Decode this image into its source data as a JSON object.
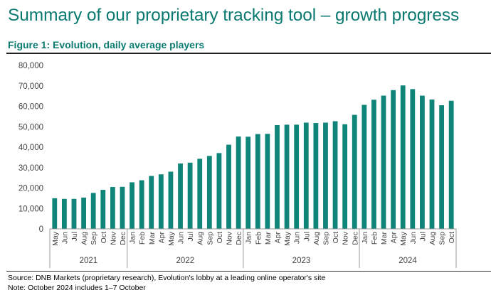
{
  "header": {
    "title": "Summary of our proprietary tracking tool – growth progress",
    "figure_title": "Figure 1: Evolution, daily average players"
  },
  "footer": {
    "source": "Source: DNB Markets (proprietary research), Evolution's lobby at a leading online operator's site",
    "note": "Note: October 2024 includes 1–7 October"
  },
  "colors": {
    "bar": "#0f857a",
    "title": "#0b7a70"
  },
  "chart_data": {
    "type": "bar",
    "ylim": [
      0,
      80000
    ],
    "yticks": [
      0,
      10000,
      20000,
      30000,
      40000,
      50000,
      60000,
      70000,
      80000
    ],
    "ytick_labels": [
      "0",
      "10,000",
      "20,000",
      "30,000",
      "40,000",
      "50,000",
      "60,000",
      "70,000",
      "80,000"
    ],
    "grid": false,
    "legend": "none",
    "categories": [
      "May",
      "Jun",
      "Jul",
      "Aug",
      "Sep",
      "Oct",
      "Nov",
      "Dec",
      "Jan",
      "Feb",
      "Mar",
      "Apr",
      "May",
      "Jun",
      "Jul",
      "Aug",
      "Sep",
      "Oct",
      "Nov",
      "Dec",
      "Jan",
      "Feb",
      "Mar",
      "Apr",
      "May",
      "Jun",
      "Jul",
      "Aug",
      "Sep",
      "Oct",
      "Nov",
      "Dec",
      "Jan",
      "Feb",
      "Mar",
      "Apr",
      "May",
      "Jun",
      "Jul",
      "Aug",
      "Sep",
      "Oct"
    ],
    "years": [
      {
        "label": "2021",
        "count": 8
      },
      {
        "label": "2022",
        "count": 12
      },
      {
        "label": "2023",
        "count": 12
      },
      {
        "label": "2024",
        "count": 10
      }
    ],
    "values": [
      15000,
      14700,
      14700,
      15300,
      17600,
      19100,
      20500,
      20600,
      22800,
      23800,
      25900,
      26700,
      28000,
      32000,
      32400,
      34300,
      35700,
      37100,
      41200,
      45200,
      45100,
      46400,
      46500,
      50800,
      51000,
      51000,
      52000,
      51800,
      52000,
      52700,
      51200,
      55800,
      60700,
      63200,
      65200,
      67900,
      70200,
      68400,
      65200,
      63300,
      60500,
      62700
    ]
  }
}
